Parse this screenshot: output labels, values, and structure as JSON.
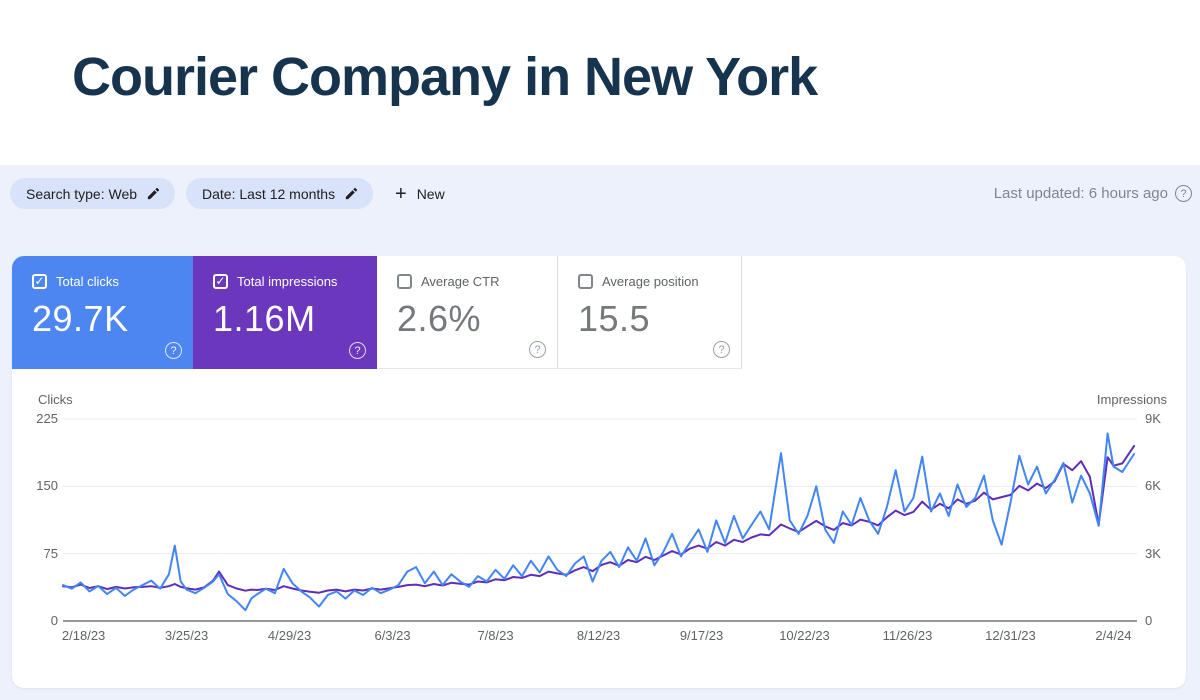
{
  "header": {
    "title": "Courier Company in New York"
  },
  "toolbar": {
    "chips": [
      {
        "label": "Search type: Web"
      },
      {
        "label": "Date: Last 12 months"
      }
    ],
    "new_label": "New",
    "last_updated": "Last updated: 6 hours ago"
  },
  "metrics": {
    "cards": [
      {
        "label": "Total clicks",
        "value": "29.7K",
        "checked": true,
        "color": "#4d86f0"
      },
      {
        "label": "Total impressions",
        "value": "1.16M",
        "checked": true,
        "color": "#6b38bd"
      },
      {
        "label": "Average CTR",
        "value": "2.6%",
        "checked": false,
        "color": "#ffffff"
      },
      {
        "label": "Average position",
        "value": "15.5",
        "checked": false,
        "color": "#ffffff"
      }
    ],
    "help_icon": "?"
  },
  "chart_data": {
    "type": "line",
    "left_axis": {
      "title": "Clicks",
      "tick_labels": [
        "225",
        "150",
        "75",
        "0"
      ],
      "tick_values": [
        225,
        150,
        75,
        0
      ],
      "max": 225
    },
    "right_axis": {
      "title": "Impressions",
      "tick_labels": [
        "9K",
        "6K",
        "3K",
        "0"
      ],
      "tick_values": [
        9,
        6,
        3,
        0
      ],
      "max": 9
    },
    "x_labels": [
      {
        "label": "2/18/23",
        "day": 7
      },
      {
        "label": "3/25/23",
        "day": 42
      },
      {
        "label": "4/29/23",
        "day": 77
      },
      {
        "label": "6/3/23",
        "day": 112
      },
      {
        "label": "7/8/23",
        "day": 147
      },
      {
        "label": "8/12/23",
        "day": 182
      },
      {
        "label": "9/17/23",
        "day": 217
      },
      {
        "label": "10/22/23",
        "day": 252
      },
      {
        "label": "11/26/23",
        "day": 287
      },
      {
        "label": "12/31/23",
        "day": 322
      },
      {
        "label": "2/4/24",
        "day": 357
      }
    ],
    "x_range_days": [
      0,
      365
    ],
    "grid": true,
    "legend_position": "none",
    "series": [
      {
        "name": "Clicks",
        "axis": "left",
        "color": "#4285f4",
        "points": [
          [
            0,
            40
          ],
          [
            3,
            36
          ],
          [
            6,
            43
          ],
          [
            9,
            33
          ],
          [
            12,
            39
          ],
          [
            15,
            30
          ],
          [
            18,
            37
          ],
          [
            21,
            28
          ],
          [
            24,
            35
          ],
          [
            27,
            40
          ],
          [
            30,
            45
          ],
          [
            33,
            36
          ],
          [
            36,
            52
          ],
          [
            38,
            84
          ],
          [
            40,
            44
          ],
          [
            42,
            35
          ],
          [
            45,
            31
          ],
          [
            48,
            37
          ],
          [
            51,
            44
          ],
          [
            53,
            52
          ],
          [
            56,
            30
          ],
          [
            59,
            22
          ],
          [
            62,
            12
          ],
          [
            64,
            25
          ],
          [
            66,
            30
          ],
          [
            69,
            36
          ],
          [
            72,
            31
          ],
          [
            75,
            58
          ],
          [
            78,
            42
          ],
          [
            81,
            33
          ],
          [
            84,
            26
          ],
          [
            87,
            16
          ],
          [
            90,
            29
          ],
          [
            93,
            33
          ],
          [
            96,
            25
          ],
          [
            99,
            34
          ],
          [
            102,
            29
          ],
          [
            105,
            37
          ],
          [
            108,
            31
          ],
          [
            111,
            35
          ],
          [
            114,
            40
          ],
          [
            117,
            55
          ],
          [
            120,
            60
          ],
          [
            123,
            42
          ],
          [
            126,
            55
          ],
          [
            129,
            40
          ],
          [
            132,
            52
          ],
          [
            135,
            44
          ],
          [
            138,
            38
          ],
          [
            141,
            50
          ],
          [
            144,
            44
          ],
          [
            147,
            57
          ],
          [
            150,
            47
          ],
          [
            153,
            62
          ],
          [
            156,
            50
          ],
          [
            159,
            67
          ],
          [
            162,
            54
          ],
          [
            165,
            72
          ],
          [
            168,
            57
          ],
          [
            171,
            50
          ],
          [
            174,
            64
          ],
          [
            177,
            72
          ],
          [
            180,
            44
          ],
          [
            183,
            67
          ],
          [
            186,
            77
          ],
          [
            189,
            60
          ],
          [
            192,
            82
          ],
          [
            195,
            67
          ],
          [
            198,
            92
          ],
          [
            201,
            62
          ],
          [
            204,
            77
          ],
          [
            207,
            97
          ],
          [
            210,
            72
          ],
          [
            213,
            87
          ],
          [
            216,
            102
          ],
          [
            219,
            77
          ],
          [
            222,
            112
          ],
          [
            225,
            87
          ],
          [
            228,
            117
          ],
          [
            231,
            92
          ],
          [
            234,
            107
          ],
          [
            237,
            122
          ],
          [
            240,
            102
          ],
          [
            244,
            187
          ],
          [
            247,
            112
          ],
          [
            250,
            97
          ],
          [
            253,
            117
          ],
          [
            256,
            150
          ],
          [
            259,
            102
          ],
          [
            262,
            87
          ],
          [
            265,
            122
          ],
          [
            268,
            107
          ],
          [
            271,
            137
          ],
          [
            274,
            112
          ],
          [
            277,
            97
          ],
          [
            280,
            127
          ],
          [
            283,
            168
          ],
          [
            286,
            122
          ],
          [
            289,
            137
          ],
          [
            292,
            183
          ],
          [
            295,
            122
          ],
          [
            298,
            142
          ],
          [
            301,
            117
          ],
          [
            304,
            152
          ],
          [
            307,
            127
          ],
          [
            310,
            137
          ],
          [
            313,
            162
          ],
          [
            316,
            112
          ],
          [
            319,
            85
          ],
          [
            322,
            132
          ],
          [
            325,
            184
          ],
          [
            328,
            152
          ],
          [
            331,
            172
          ],
          [
            334,
            142
          ],
          [
            337,
            157
          ],
          [
            340,
            176
          ],
          [
            343,
            132
          ],
          [
            346,
            162
          ],
          [
            349,
            142
          ],
          [
            352,
            106
          ],
          [
            355,
            209
          ],
          [
            357,
            172
          ],
          [
            360,
            166
          ],
          [
            364,
            186
          ]
        ]
      },
      {
        "name": "Impressions",
        "axis": "right",
        "color": "#5e2eb8",
        "points": [
          [
            0,
            1.55
          ],
          [
            3,
            1.5
          ],
          [
            6,
            1.62
          ],
          [
            9,
            1.47
          ],
          [
            12,
            1.55
          ],
          [
            15,
            1.42
          ],
          [
            18,
            1.52
          ],
          [
            21,
            1.45
          ],
          [
            24,
            1.5
          ],
          [
            27,
            1.52
          ],
          [
            30,
            1.55
          ],
          [
            33,
            1.48
          ],
          [
            36,
            1.55
          ],
          [
            38,
            1.65
          ],
          [
            40,
            1.52
          ],
          [
            42,
            1.46
          ],
          [
            45,
            1.4
          ],
          [
            48,
            1.5
          ],
          [
            51,
            1.8
          ],
          [
            53,
            2.2
          ],
          [
            56,
            1.6
          ],
          [
            59,
            1.45
          ],
          [
            62,
            1.35
          ],
          [
            64,
            1.4
          ],
          [
            66,
            1.38
          ],
          [
            69,
            1.44
          ],
          [
            72,
            1.38
          ],
          [
            75,
            1.55
          ],
          [
            78,
            1.45
          ],
          [
            81,
            1.36
          ],
          [
            84,
            1.3
          ],
          [
            87,
            1.26
          ],
          [
            90,
            1.36
          ],
          [
            93,
            1.4
          ],
          [
            96,
            1.32
          ],
          [
            99,
            1.4
          ],
          [
            102,
            1.36
          ],
          [
            105,
            1.45
          ],
          [
            108,
            1.4
          ],
          [
            111,
            1.46
          ],
          [
            114,
            1.52
          ],
          [
            117,
            1.6
          ],
          [
            120,
            1.62
          ],
          [
            123,
            1.55
          ],
          [
            126,
            1.65
          ],
          [
            129,
            1.58
          ],
          [
            132,
            1.7
          ],
          [
            135,
            1.66
          ],
          [
            138,
            1.62
          ],
          [
            141,
            1.76
          ],
          [
            144,
            1.72
          ],
          [
            147,
            1.86
          ],
          [
            150,
            1.82
          ],
          [
            153,
            1.96
          ],
          [
            156,
            1.92
          ],
          [
            159,
            2.06
          ],
          [
            162,
            2.0
          ],
          [
            165,
            2.2
          ],
          [
            168,
            2.12
          ],
          [
            171,
            2.06
          ],
          [
            174,
            2.26
          ],
          [
            177,
            2.4
          ],
          [
            180,
            2.22
          ],
          [
            183,
            2.5
          ],
          [
            186,
            2.62
          ],
          [
            189,
            2.46
          ],
          [
            192,
            2.72
          ],
          [
            195,
            2.62
          ],
          [
            198,
            2.86
          ],
          [
            201,
            2.72
          ],
          [
            204,
            2.92
          ],
          [
            207,
            3.12
          ],
          [
            210,
            2.96
          ],
          [
            213,
            3.22
          ],
          [
            216,
            3.36
          ],
          [
            219,
            3.22
          ],
          [
            222,
            3.52
          ],
          [
            225,
            3.36
          ],
          [
            228,
            3.62
          ],
          [
            231,
            3.52
          ],
          [
            234,
            3.72
          ],
          [
            237,
            3.86
          ],
          [
            240,
            3.82
          ],
          [
            244,
            4.3
          ],
          [
            247,
            4.12
          ],
          [
            250,
            3.96
          ],
          [
            253,
            4.22
          ],
          [
            256,
            4.46
          ],
          [
            259,
            4.22
          ],
          [
            262,
            4.06
          ],
          [
            265,
            4.36
          ],
          [
            268,
            4.26
          ],
          [
            271,
            4.52
          ],
          [
            274,
            4.42
          ],
          [
            277,
            4.26
          ],
          [
            280,
            4.62
          ],
          [
            283,
            4.92
          ],
          [
            286,
            4.72
          ],
          [
            289,
            4.86
          ],
          [
            292,
            5.32
          ],
          [
            295,
            4.96
          ],
          [
            298,
            5.22
          ],
          [
            301,
            5.02
          ],
          [
            304,
            5.42
          ],
          [
            307,
            5.22
          ],
          [
            310,
            5.36
          ],
          [
            313,
            5.72
          ],
          [
            316,
            5.42
          ],
          [
            319,
            5.52
          ],
          [
            322,
            5.62
          ],
          [
            325,
            6.02
          ],
          [
            328,
            5.82
          ],
          [
            331,
            6.12
          ],
          [
            334,
            5.92
          ],
          [
            337,
            6.22
          ],
          [
            340,
            7.0
          ],
          [
            343,
            6.72
          ],
          [
            346,
            7.12
          ],
          [
            349,
            6.42
          ],
          [
            352,
            4.3
          ],
          [
            355,
            7.3
          ],
          [
            357,
            6.92
          ],
          [
            360,
            7.02
          ],
          [
            364,
            7.8
          ]
        ]
      }
    ],
    "colors": {
      "gridline": "#e8ebf0",
      "baseline": "#70757a",
      "clicks": "#4285f4",
      "impressions": "#5e2eb8"
    }
  }
}
